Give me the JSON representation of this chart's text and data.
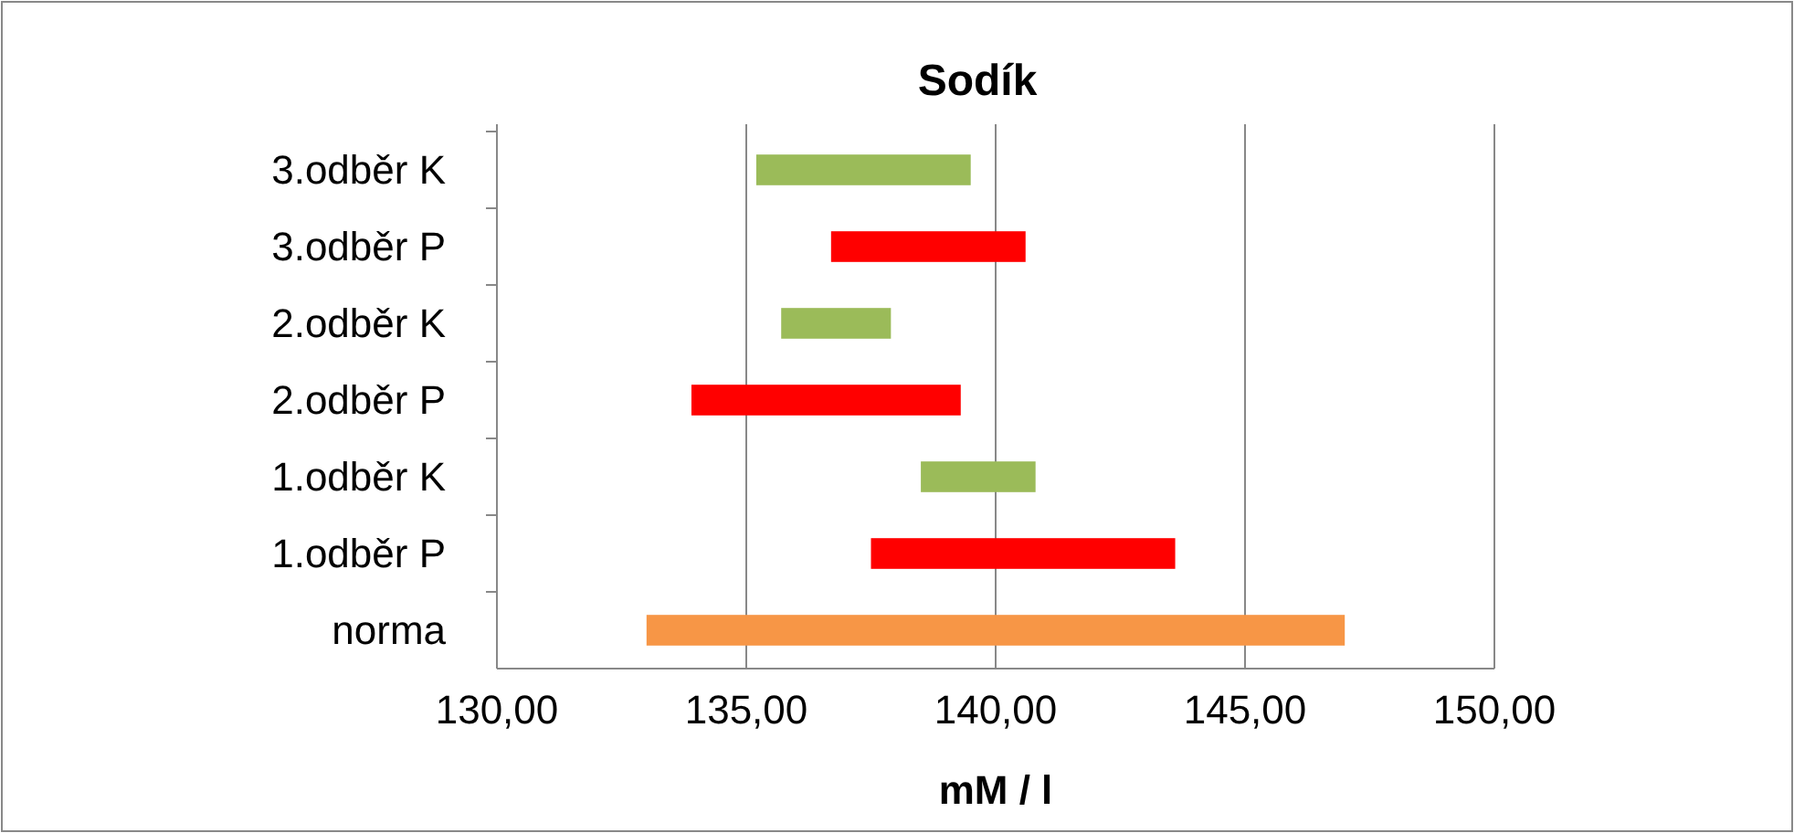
{
  "chart_data": {
    "type": "bar",
    "orientation": "horizontal",
    "title": "Sodík",
    "xlabel": "mM / l",
    "categories": [
      "3.odběr K",
      "3.odběr P",
      "2.odběr K",
      "2.odběr P",
      "1.odběr K",
      "1.odběr P",
      "norma"
    ],
    "base": [
      135.2,
      136.7,
      135.7,
      133.9,
      138.5,
      137.5,
      133
    ],
    "values": [
      4.3,
      3.9,
      2.2,
      5.4,
      2.3,
      6.1,
      14
    ],
    "colors": [
      "#9bbb59",
      "#ff0000",
      "#9bbb59",
      "#ff0000",
      "#9bbb59",
      "#ff0000",
      "#f79646"
    ],
    "xlim": [
      130,
      150
    ],
    "xticks": [
      {
        "value": 130,
        "label": "130,00"
      },
      {
        "value": 135,
        "label": "135,00"
      },
      {
        "value": 140,
        "label": "140,00"
      },
      {
        "value": 145,
        "label": "145,00"
      },
      {
        "value": 150,
        "label": "150,00"
      }
    ],
    "grid": "x"
  }
}
